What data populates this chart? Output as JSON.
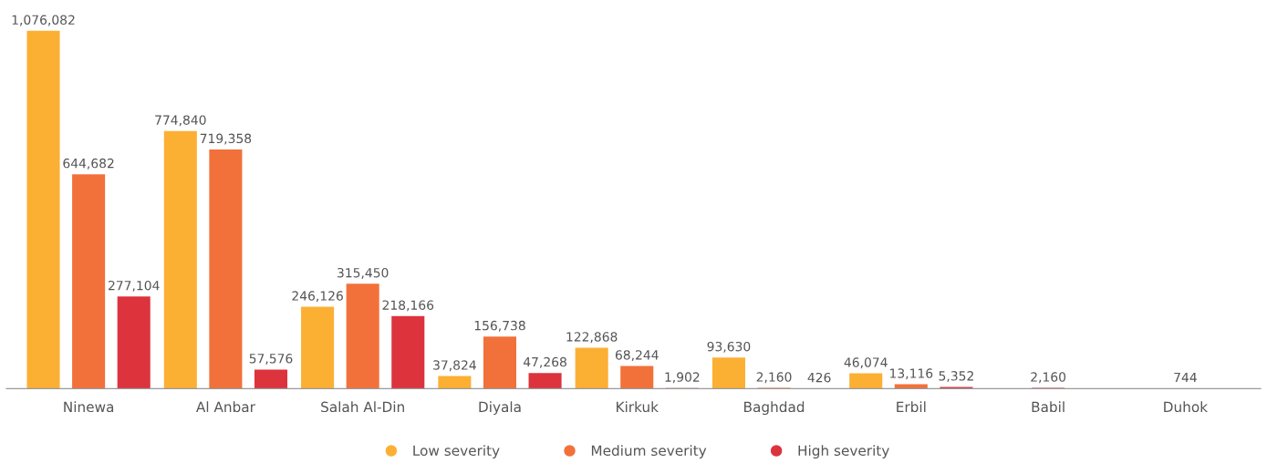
{
  "chart_data": {
    "type": "bar",
    "categories": [
      "Ninewa",
      "Al Anbar",
      "Salah Al-Din",
      "Diyala",
      "Kirkuk",
      "Baghdad",
      "Erbil",
      "Babil",
      "Duhok"
    ],
    "series": [
      {
        "name": "Low severity",
        "color": "#fbb034",
        "values": [
          1076082,
          774840,
          246126,
          37824,
          122868,
          93630,
          46074,
          null,
          744
        ],
        "value_labels": [
          "1,076,082",
          "774,840",
          "246,126",
          "37,824",
          "122,868",
          "93,630",
          "46,074",
          null,
          "744"
        ]
      },
      {
        "name": "Medium severity",
        "color": "#f2713a",
        "values": [
          644682,
          719358,
          315450,
          156738,
          68244,
          2160,
          13116,
          null,
          null
        ],
        "value_labels": [
          "644,682",
          "719,358",
          "315,450",
          "156,738",
          "68,244",
          "2,160",
          "13,116",
          null,
          null
        ]
      },
      {
        "name": "High severity",
        "color": "#dc333d",
        "values": [
          277104,
          57576,
          218166,
          47268,
          1902,
          426,
          5352,
          2160,
          null
        ],
        "value_labels": [
          "277,104",
          "57,576",
          "218,166",
          "47,268",
          "1,902",
          "426",
          "5,352",
          "2,160",
          null
        ]
      }
    ],
    "grid": false,
    "legend": "bottom",
    "tick_labels": "x"
  }
}
